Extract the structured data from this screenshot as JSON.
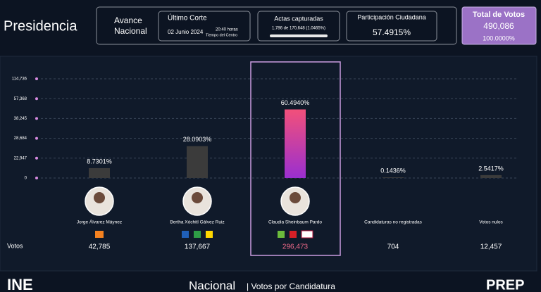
{
  "header": {
    "title": "Presidencia",
    "avance_lines": [
      "Avance",
      "Nacional"
    ],
    "corte": {
      "title": "Último Corte",
      "date": "02 Junio 2024",
      "time": "20:40 horas",
      "zone": "Tiempo del Centro"
    },
    "actas": {
      "title": "Actas capturadas",
      "detail": "1,786 de 170,648 (1.0465%)"
    },
    "participacion": {
      "title": "Participación Ciudadana",
      "value": "57.4915%"
    },
    "total": {
      "title": "Total de Votos",
      "value": "490,086",
      "percent": "100.0000%"
    }
  },
  "chart_data": {
    "type": "bar",
    "categories": [
      "Jorge Álvarez Máynez",
      "Bertha Xóchitl Gálvez Ruiz",
      "Claudia Sheinbaum Pardo",
      "Candidaturas no registradas",
      "Votos nulos"
    ],
    "values": [
      8.7301,
      28.0903,
      60.494,
      0.1436,
      2.5417
    ],
    "value_labels": [
      "8.7301%",
      "28.0903%",
      "60.4940%",
      "0.1436%",
      "2.5417%"
    ],
    "colors": [
      "#3b3b3b",
      "#3b3b3b",
      [
        "#f2507a",
        "#9a2fd0"
      ],
      "#3b3b3b",
      "#3b3b3b"
    ],
    "ylim": [
      0,
      87.5
    ],
    "y_axis_labels": [
      "114,736",
      "57,368",
      "38,245",
      "28,684",
      "22,947",
      "0"
    ],
    "votes_label": "Votos",
    "votes": [
      "42,785",
      "137,667",
      "296,473",
      "704",
      "12,457"
    ]
  },
  "footer": {
    "left": "INE",
    "center": "Nacional",
    "subtitle": "| Votos por Candidatura",
    "right": "PREP"
  }
}
